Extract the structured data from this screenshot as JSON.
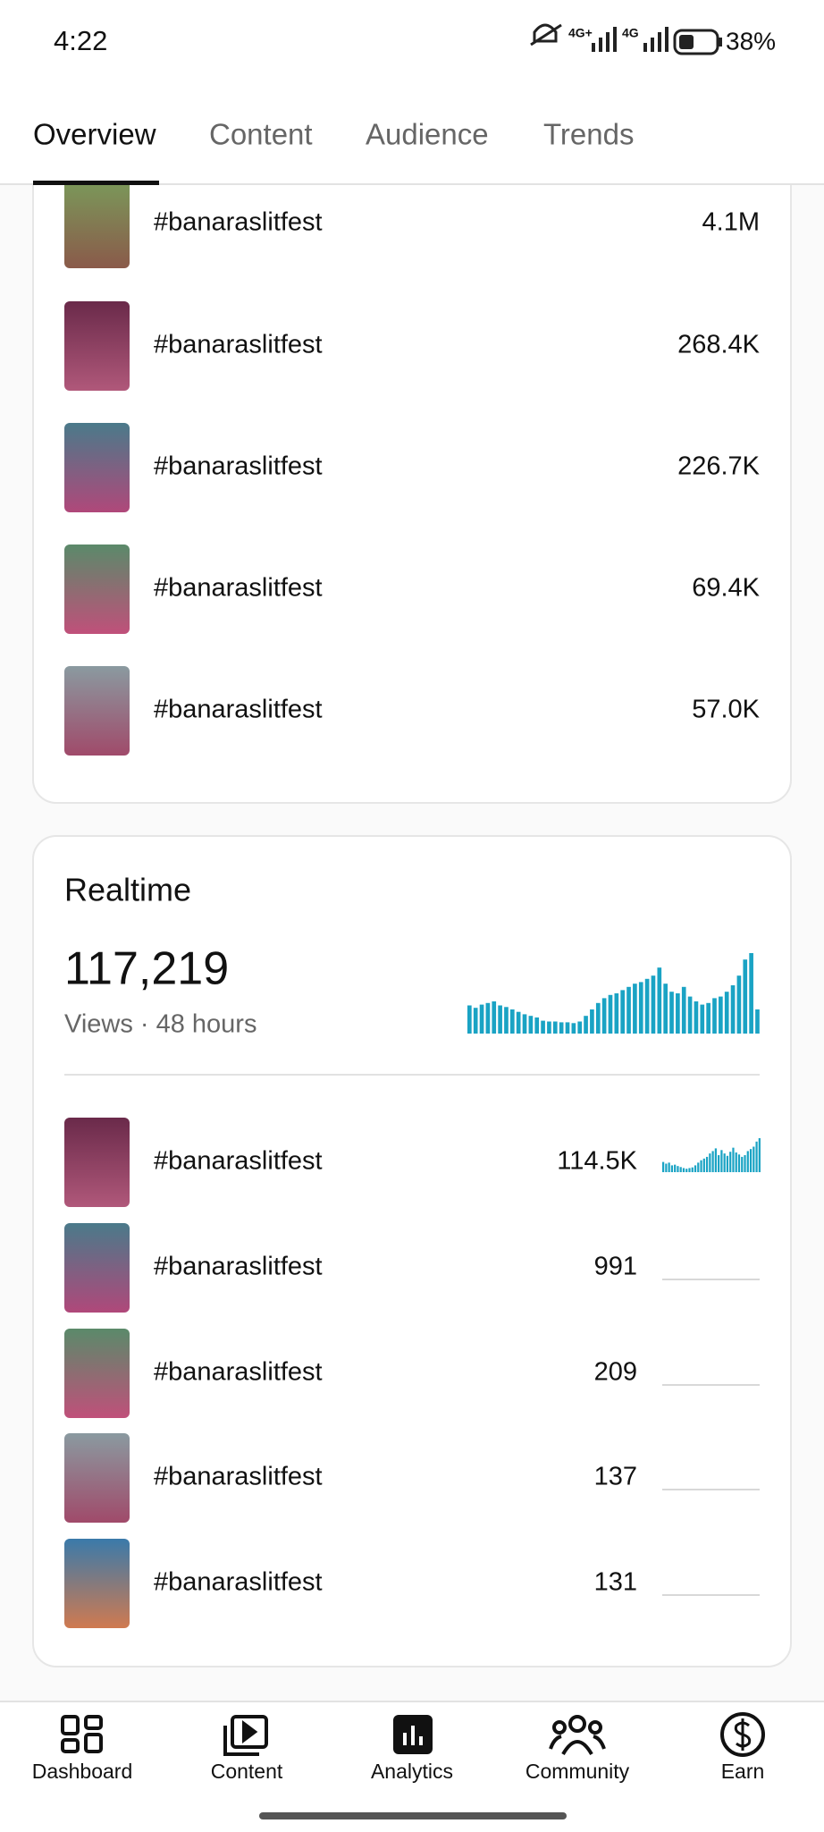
{
  "status_bar": {
    "time": "4:22",
    "network": [
      "4G+",
      "4G"
    ],
    "battery": "38%"
  },
  "tabs": [
    "Overview",
    "Content",
    "Audience",
    "Trends"
  ],
  "top_videos": [
    {
      "title": "#banaraslitfest",
      "views": "4.1M"
    },
    {
      "title": "#banaraslitfest",
      "views": "268.4K"
    },
    {
      "title": "#banaraslitfest",
      "views": "226.7K"
    },
    {
      "title": "#banaraslitfest",
      "views": "69.4K"
    },
    {
      "title": "#banaraslitfest",
      "views": "57.0K"
    }
  ],
  "realtime": {
    "title": "Realtime",
    "total": "117,219",
    "subtitle": "Views · 48 hours",
    "chart": {
      "type": "bar",
      "color": "#1aa3c4",
      "ylim": [
        0,
        100
      ],
      "values": [
        35,
        32,
        36,
        38,
        40,
        35,
        33,
        30,
        27,
        24,
        22,
        20,
        16,
        15,
        15,
        14,
        14,
        13,
        15,
        22,
        30,
        38,
        44,
        48,
        50,
        54,
        58,
        62,
        64,
        68,
        72,
        82,
        62,
        52,
        50,
        58,
        46,
        40,
        36,
        38,
        44,
        46,
        52,
        60,
        72,
        92,
        100,
        30
      ]
    },
    "videos": [
      {
        "title": "#banaraslitfest",
        "views": "114.5K",
        "chart": {
          "type": "bar",
          "color": "#1aa3c4",
          "ylim": [
            0,
            100
          ],
          "values": [
            30,
            25,
            28,
            20,
            22,
            18,
            15,
            12,
            10,
            12,
            14,
            20,
            28,
            35,
            40,
            45,
            55,
            62,
            70,
            50,
            65,
            55,
            48,
            60,
            72,
            58,
            52,
            45,
            50,
            62,
            68,
            75,
            90,
            100
          ]
        }
      },
      {
        "title": "#banaraslitfest",
        "views": "991"
      },
      {
        "title": "#banaraslitfest",
        "views": "209"
      },
      {
        "title": "#banaraslitfest",
        "views": "137"
      },
      {
        "title": "#banaraslitfest",
        "views": "131"
      }
    ]
  },
  "nav": [
    "Dashboard",
    "Content",
    "Analytics",
    "Community",
    "Earn"
  ]
}
